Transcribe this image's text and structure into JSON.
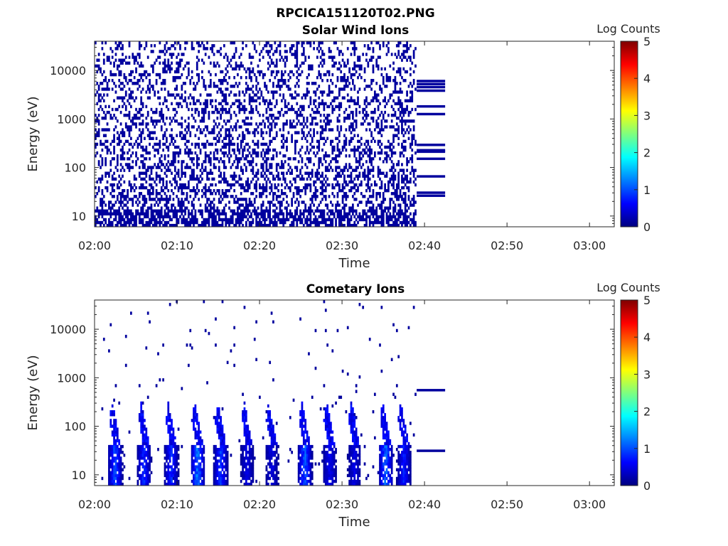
{
  "figure_title": "RPCICA151120T02.PNG",
  "colormap": {
    "name": "jet",
    "stops": [
      "#00007f",
      "#0000ff",
      "#007fff",
      "#00ffff",
      "#7fff7f",
      "#ffff00",
      "#ff7f00",
      "#ff0000",
      "#7f0000"
    ]
  },
  "chart_data": [
    {
      "type": "heatmap",
      "title": "Solar Wind Ions",
      "xlabel": "Time",
      "ylabel": "Energy (eV)",
      "x_ticks": [
        "02:00",
        "02:10",
        "02:20",
        "02:30",
        "02:40",
        "02:50",
        "03:00"
      ],
      "x_tick_minutes": [
        0,
        10,
        20,
        30,
        40,
        50,
        60
      ],
      "xlim_minutes": [
        0,
        63
      ],
      "y_scale": "log",
      "y_ticks": [
        "10",
        "100",
        "1000",
        "10000"
      ],
      "y_tick_values": [
        10,
        100,
        1000,
        10000
      ],
      "ylim": [
        6,
        40000
      ],
      "data_end_minute": 39,
      "sparse_end_minute": 42.5,
      "colorbar": {
        "label": "Log Counts",
        "range": [
          0,
          5
        ],
        "ticks": [
          "0",
          "1",
          "2",
          "3",
          "4",
          "5"
        ]
      },
      "pattern": "sparse",
      "dominant_level": 0.15,
      "sparse_bands_energy": [
        6000,
        5200,
        4500,
        3800,
        1800,
        1250,
        290,
        225,
        210,
        150,
        65,
        30,
        26
      ],
      "sparse_band_level": 0.15
    },
    {
      "type": "heatmap",
      "title": "Cometary Ions",
      "xlabel": "Time",
      "ylabel": "Energy (eV)",
      "x_ticks": [
        "02:00",
        "02:10",
        "02:20",
        "02:30",
        "02:40",
        "02:50",
        "03:00"
      ],
      "x_tick_minutes": [
        0,
        10,
        20,
        30,
        40,
        50,
        60
      ],
      "xlim_minutes": [
        0,
        63
      ],
      "y_scale": "log",
      "y_ticks": [
        "10",
        "100",
        "1000",
        "10000"
      ],
      "y_tick_values": [
        10,
        100,
        1000,
        10000
      ],
      "ylim": [
        6,
        40000
      ],
      "data_end_minute": 39,
      "sparse_end_minute": 42.5,
      "colorbar": {
        "label": "Log Counts",
        "range": [
          0,
          5
        ],
        "ticks": [
          "0",
          "1",
          "2",
          "3",
          "4",
          "5"
        ]
      },
      "pattern": "bursts",
      "burst_centers_minutes": [
        2.5,
        6,
        9.3,
        12.5,
        15.3,
        18.5,
        21.5,
        25.5,
        28.5,
        31.5,
        35.3,
        37.5
      ],
      "burst_peak_levels": [
        1.2,
        1.0,
        1.0,
        1.5,
        1.1,
        0.6,
        0.6,
        1.3,
        0.7,
        0.6,
        1.4,
        0.9
      ],
      "sparse_bands_energy": [
        550,
        31
      ],
      "sparse_band_level": 0.15
    }
  ]
}
